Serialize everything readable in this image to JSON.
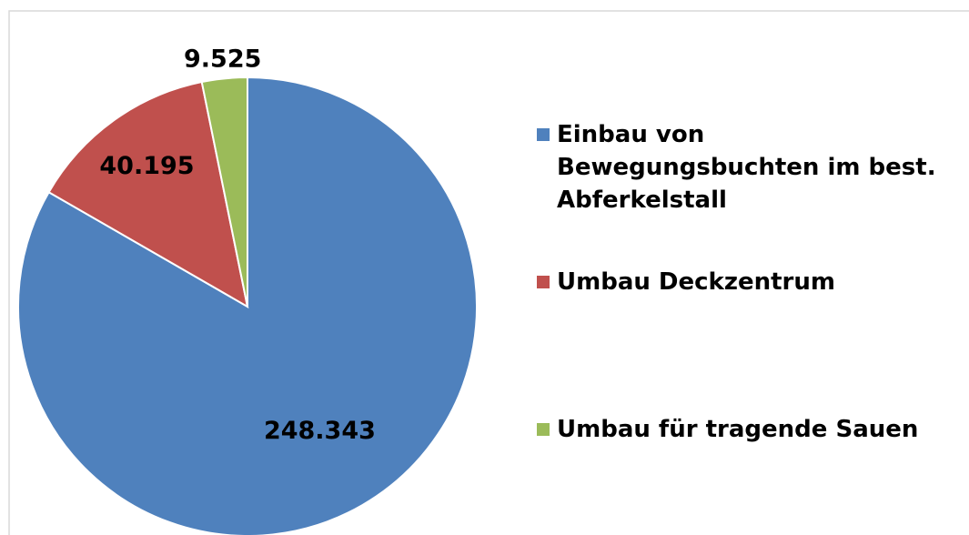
{
  "chart_data": {
    "type": "pie",
    "categories": [
      "Einbau von Bewegungsbuchten im best. Abferkelstall",
      "Umbau Deckzentrum",
      "Umbau für tragende Sauen"
    ],
    "values": [
      248343,
      40195,
      9525
    ],
    "value_labels": [
      "248.343",
      "40.195",
      "9.525"
    ],
    "colors": [
      "#4f81bd",
      "#c0504d",
      "#9bbb59"
    ],
    "legend": "right"
  }
}
